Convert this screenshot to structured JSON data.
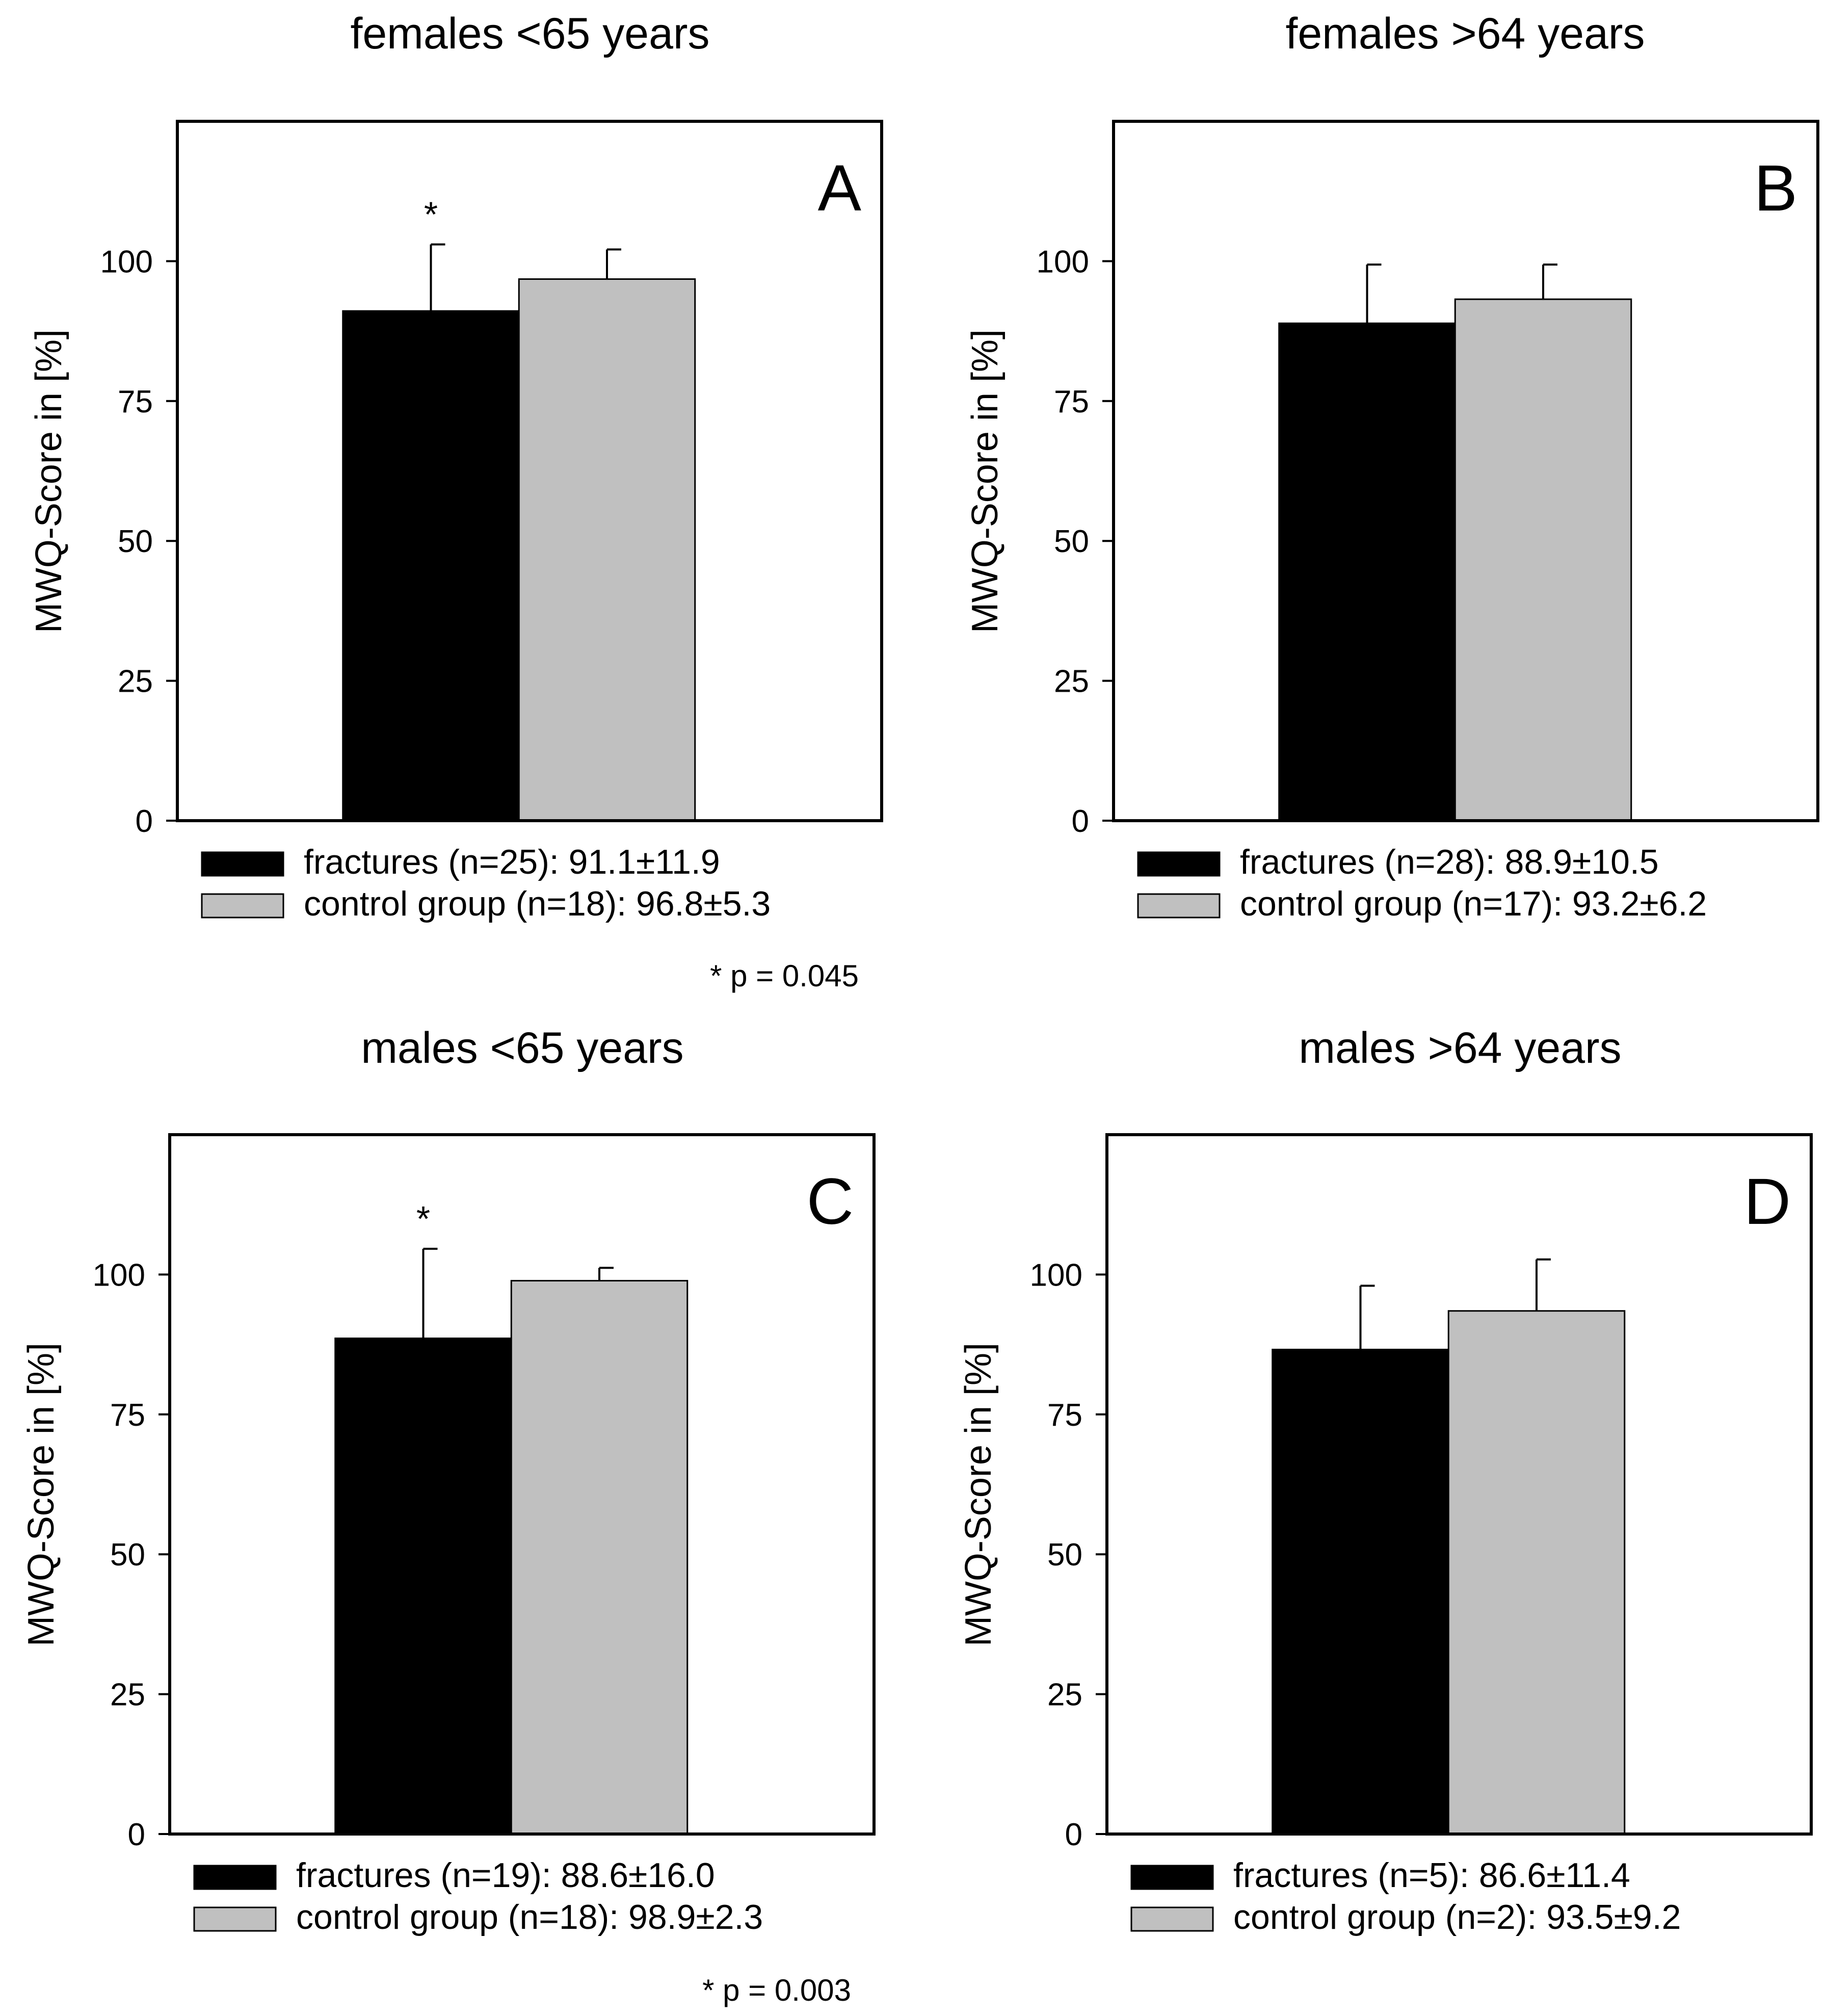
{
  "colors": {
    "fractures": "#000000",
    "control": "#c0c0c0",
    "axis": "#000000",
    "background": "#ffffff"
  },
  "chart_data": [
    {
      "type": "bar",
      "title": "females <65 years",
      "panel_label": "A",
      "ylabel": "MWQ-Score in [%]",
      "ylim": [
        0,
        125
      ],
      "yticks": [
        0,
        25,
        50,
        75,
        100
      ],
      "grid": false,
      "series": [
        {
          "name": "fractures",
          "value": 91.1,
          "error": 11.9,
          "legend": "fractures (n=25): 91.1±11.9",
          "color": "#000000"
        },
        {
          "name": "control group",
          "value": 96.8,
          "error": 5.3,
          "legend": "control group (n=18): 96.8±5.3",
          "color": "#c0c0c0"
        }
      ],
      "significance_marker": "*",
      "note": "* p = 0.045"
    },
    {
      "type": "bar",
      "title": "females >64 years",
      "panel_label": "B",
      "ylabel": "MWQ-Score in [%]",
      "ylim": [
        0,
        125
      ],
      "yticks": [
        0,
        25,
        50,
        75,
        100
      ],
      "grid": false,
      "series": [
        {
          "name": "fractures",
          "value": 88.9,
          "error": 10.5,
          "legend": "fractures (n=28): 88.9±10.5",
          "color": "#000000"
        },
        {
          "name": "control group",
          "value": 93.2,
          "error": 6.2,
          "legend": "control group (n=17): 93.2±6.2",
          "color": "#c0c0c0"
        }
      ],
      "significance_marker": "",
      "note": ""
    },
    {
      "type": "bar",
      "title": "males <65 years",
      "panel_label": "C",
      "ylabel": "MWQ-Score in [%]",
      "ylim": [
        0,
        125
      ],
      "yticks": [
        0,
        25,
        50,
        75,
        100
      ],
      "grid": false,
      "series": [
        {
          "name": "fractures",
          "value": 88.6,
          "error": 16.0,
          "legend": "fractures (n=19): 88.6±16.0",
          "color": "#000000"
        },
        {
          "name": "control group",
          "value": 98.9,
          "error": 2.3,
          "legend": "control group (n=18): 98.9±2.3",
          "color": "#c0c0c0"
        }
      ],
      "significance_marker": "*",
      "note": "* p = 0.003"
    },
    {
      "type": "bar",
      "title": "males >64 years",
      "panel_label": "D",
      "ylabel": "MWQ-Score in [%]",
      "ylim": [
        0,
        125
      ],
      "yticks": [
        0,
        25,
        50,
        75,
        100
      ],
      "grid": false,
      "series": [
        {
          "name": "fractures",
          "value": 86.6,
          "error": 11.4,
          "legend": "fractures (n=5): 86.6±11.4",
          "color": "#000000"
        },
        {
          "name": "control group",
          "value": 93.5,
          "error": 9.2,
          "legend": "control group (n=2): 93.5±9.2",
          "color": "#c0c0c0"
        }
      ],
      "significance_marker": "",
      "note": ""
    }
  ]
}
